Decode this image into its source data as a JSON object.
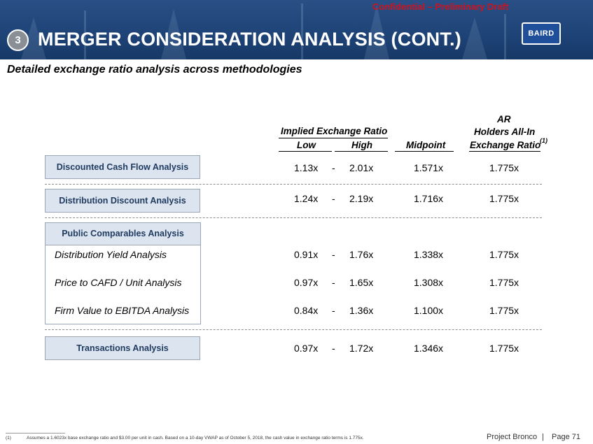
{
  "header": {
    "confidential": "Confidential – Preliminary Draft",
    "section_number": "3",
    "title": "MERGER CONSIDERATION ANALYSIS (CONT.)",
    "logo_text": "BAIRD"
  },
  "subtitle": "Detailed exchange ratio analysis across methodologies",
  "columns": {
    "implied": "Implied Exchange Ratio",
    "low": "Low",
    "high": "High",
    "midpoint": "Midpoint",
    "ar_line1": "AR",
    "ar_line2": "Holders All-In",
    "ar_line3": "Exchange Ratio",
    "ar_footnote_ref": "(1)"
  },
  "dash": "-",
  "rows": {
    "dcf": {
      "label": "Discounted Cash Flow Analysis",
      "low": "1.13x",
      "high": "2.01x",
      "midpoint": "1.571x",
      "ar": "1.775x"
    },
    "dda": {
      "label": "Distribution Discount Analysis",
      "low": "1.24x",
      "high": "2.19x",
      "midpoint": "1.716x",
      "ar": "1.775x"
    },
    "pca": {
      "label": "Public Comparables Analysis",
      "items": [
        {
          "label": "Distribution Yield Analysis",
          "low": "0.91x",
          "high": "1.76x",
          "midpoint": "1.338x",
          "ar": "1.775x"
        },
        {
          "label": "Price to CAFD / Unit Analysis",
          "low": "0.97x",
          "high": "1.65x",
          "midpoint": "1.308x",
          "ar": "1.775x"
        },
        {
          "label": "Firm Value to EBITDA Analysis",
          "low": "0.84x",
          "high": "1.36x",
          "midpoint": "1.100x",
          "ar": "1.775x"
        }
      ]
    },
    "ta": {
      "label": "Transactions Analysis",
      "low": "0.97x",
      "high": "1.72x",
      "midpoint": "1.346x",
      "ar": "1.775x"
    }
  },
  "footnote": {
    "number": "(1)",
    "text": "Assumes a 1.6023x base exchange ratio and $3.00 per unit in cash. Based on a 10-day VWAP as of October 5, 2018, the cash value in exchange ratio terms is 1.775x."
  },
  "footer": {
    "project": "Project Bronco",
    "separator": "|",
    "page": "Page 71"
  }
}
